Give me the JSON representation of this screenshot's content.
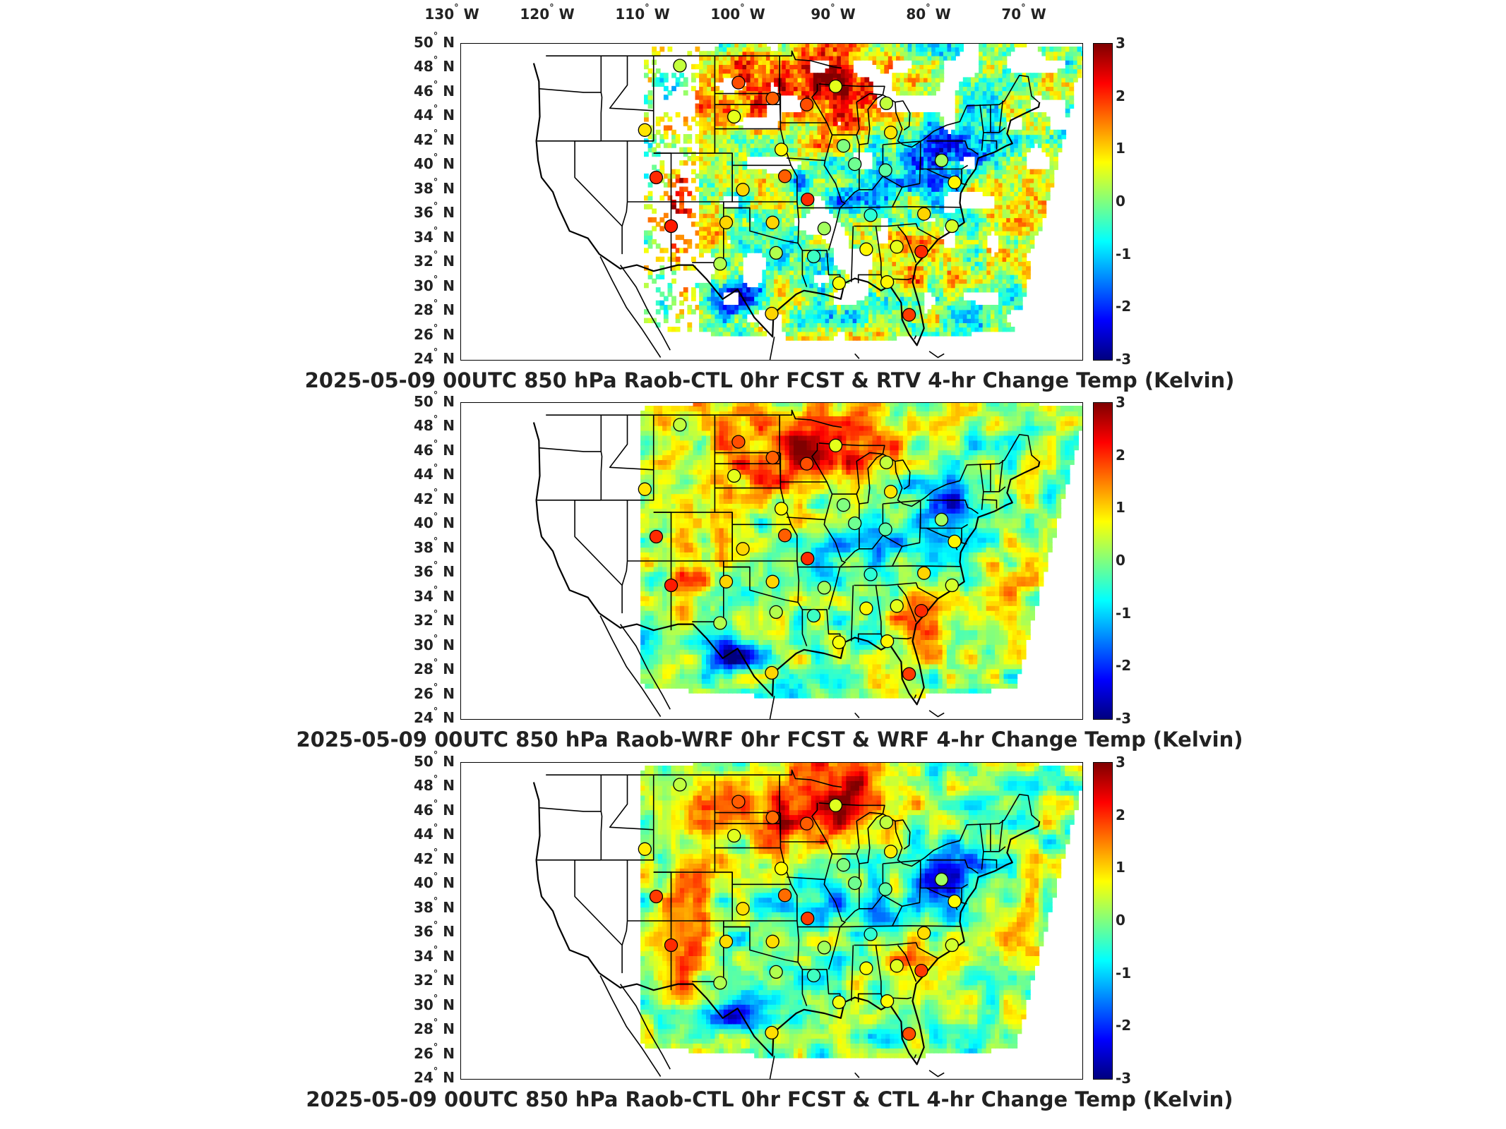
{
  "lon_labels": [
    "130",
    "120",
    "110",
    "100",
    "90",
    "80",
    "70"
  ],
  "lon_suffix": "W",
  "lat_labels": [
    "50",
    "48",
    "46",
    "44",
    "42",
    "40",
    "38",
    "36",
    "34",
    "32",
    "30",
    "28",
    "26",
    "24"
  ],
  "lat_suffix": "N",
  "colorbar": {
    "ticks": [
      "3",
      "2",
      "1",
      "0",
      "-1",
      "-2",
      "-3"
    ],
    "range": [
      -3,
      3
    ],
    "colormap": "jet",
    "colors": [
      "#00007f",
      "#0000ff",
      "#007fff",
      "#00ffff",
      "#7fff7f",
      "#ffff00",
      "#ff7f00",
      "#ff0000",
      "#7f0000"
    ]
  },
  "panels": [
    {
      "title": "2025-05-09 00UTC 850 hPa Raob-CTL 0hr FCST & RTV 4-hr Change Temp (Kelvin)",
      "field_style": "scattered-retrieval"
    },
    {
      "title": "2025-05-09 00UTC 850 hPa Raob-WRF 0hr FCST & WRF 4-hr Change Temp (Kelvin)",
      "field_style": "smooth-model"
    },
    {
      "title": "2025-05-09 00UTC 850 hPa Raob-CTL 0hr FCST & CTL 4-hr Change Temp (Kelvin)",
      "field_style": "smooth-model"
    }
  ],
  "raob_stations": [
    {
      "lon": -108,
      "lat": 48.2,
      "value": 0.4
    },
    {
      "lon": -101.3,
      "lat": 46.8,
      "value": 1.8
    },
    {
      "lon": -97.4,
      "lat": 45.5,
      "value": 1.7
    },
    {
      "lon": -93.5,
      "lat": 45.0,
      "value": 1.8
    },
    {
      "lon": -90.2,
      "lat": 46.5,
      "value": 0.6
    },
    {
      "lon": -84.4,
      "lat": 45.1,
      "value": 0.4
    },
    {
      "lon": -101.8,
      "lat": 44.0,
      "value": 0.6
    },
    {
      "lon": -112,
      "lat": 42.9,
      "value": 0.9
    },
    {
      "lon": -96.4,
      "lat": 41.3,
      "value": 0.8
    },
    {
      "lon": -89.3,
      "lat": 41.6,
      "value": 0.0
    },
    {
      "lon": -83.9,
      "lat": 42.7,
      "value": 0.9
    },
    {
      "lon": -88.0,
      "lat": 40.1,
      "value": -0.1
    },
    {
      "lon": -78.1,
      "lat": 40.4,
      "value": 0.2
    },
    {
      "lon": -110.7,
      "lat": 39.0,
      "value": 2.0
    },
    {
      "lon": -100.8,
      "lat": 38.0,
      "value": 1.0
    },
    {
      "lon": -96.0,
      "lat": 39.1,
      "value": 1.7
    },
    {
      "lon": -93.4,
      "lat": 37.2,
      "value": 2.0
    },
    {
      "lon": -84.5,
      "lat": 39.6,
      "value": -0.2
    },
    {
      "lon": -76.6,
      "lat": 38.6,
      "value": 0.8
    },
    {
      "lon": -109.0,
      "lat": 35.0,
      "value": 2.1
    },
    {
      "lon": -102.7,
      "lat": 35.3,
      "value": 1.0
    },
    {
      "lon": -97.4,
      "lat": 35.3,
      "value": 1.0
    },
    {
      "lon": -91.5,
      "lat": 34.8,
      "value": 0.2
    },
    {
      "lon": -86.2,
      "lat": 35.9,
      "value": -0.5
    },
    {
      "lon": -80.1,
      "lat": 36.0,
      "value": 1.0
    },
    {
      "lon": -76.9,
      "lat": 35.0,
      "value": 0.5
    },
    {
      "lon": -103.4,
      "lat": 31.9,
      "value": 0.3
    },
    {
      "lon": -97.0,
      "lat": 32.8,
      "value": 0.3
    },
    {
      "lon": -92.7,
      "lat": 32.5,
      "value": -0.4
    },
    {
      "lon": -86.7,
      "lat": 33.1,
      "value": 0.8
    },
    {
      "lon": -83.2,
      "lat": 33.3,
      "value": 0.6
    },
    {
      "lon": -80.4,
      "lat": 32.9,
      "value": 2.0
    },
    {
      "lon": -97.5,
      "lat": 27.8,
      "value": 1.0
    },
    {
      "lon": -89.8,
      "lat": 30.3,
      "value": 0.7
    },
    {
      "lon": -84.3,
      "lat": 30.4,
      "value": 0.8
    },
    {
      "lon": -81.8,
      "lat": 27.7,
      "value": 1.9
    }
  ]
}
